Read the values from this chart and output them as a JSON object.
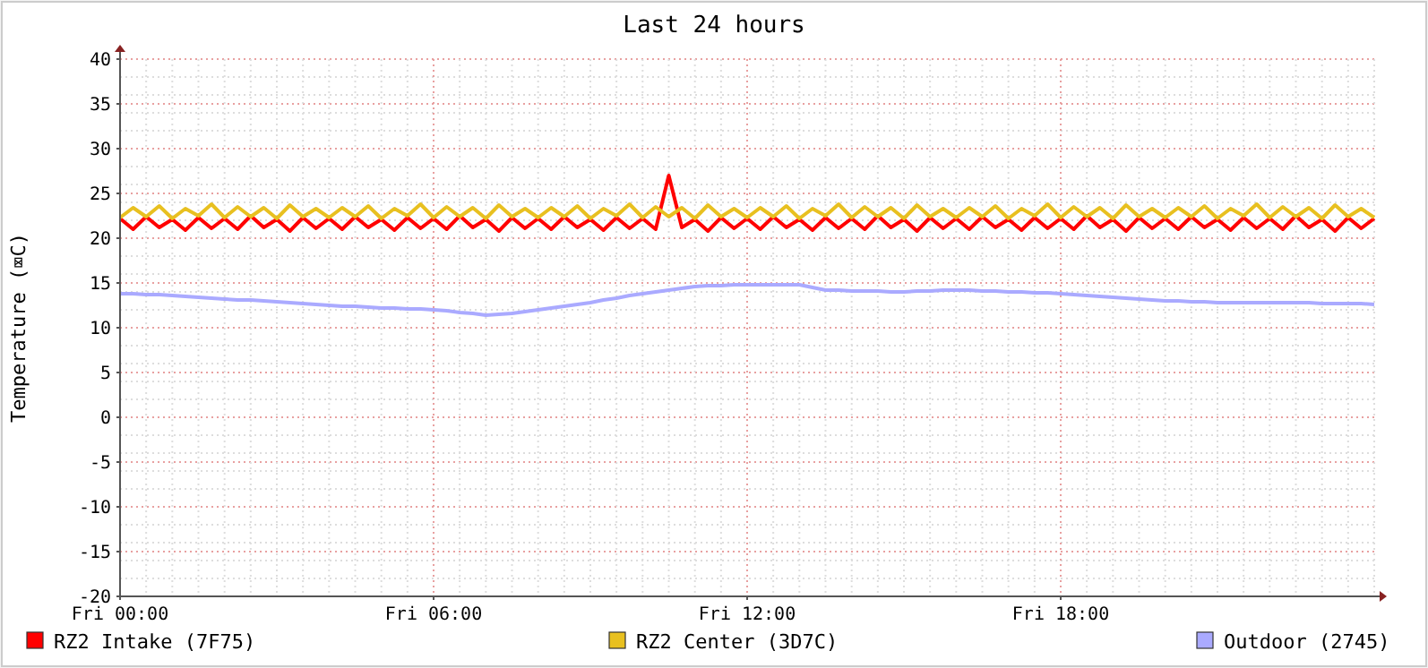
{
  "chart_data": {
    "type": "line",
    "title": "Last 24 hours",
    "ylabel": "Temperature (⌧C)",
    "categories": [
      "Fri 00:00",
      null,
      null,
      null,
      null,
      null,
      null,
      null,
      null,
      null,
      null,
      null,
      null,
      null,
      null,
      null,
      null,
      null,
      null,
      null,
      null,
      null,
      null,
      null,
      "Fri 06:00",
      null,
      null,
      null,
      null,
      null,
      null,
      null,
      null,
      null,
      null,
      null,
      null,
      null,
      null,
      null,
      null,
      null,
      null,
      null,
      null,
      null,
      null,
      null,
      "Fri 12:00",
      null,
      null,
      null,
      null,
      null,
      null,
      null,
      null,
      null,
      null,
      null,
      null,
      null,
      null,
      null,
      null,
      null,
      null,
      null,
      null,
      null,
      null,
      null,
      "Fri 18:00",
      null,
      null,
      null,
      null,
      null,
      null,
      null,
      null,
      null,
      null,
      null,
      null,
      null,
      null,
      null,
      null,
      null,
      null,
      null,
      null,
      null,
      null,
      null,
      null
    ],
    "series": [
      {
        "name": "RZ2 Intake (7F75)",
        "color": "#ff0000",
        "values": [
          22.2,
          21.0,
          22.4,
          21.2,
          22.1,
          20.9,
          22.3,
          21.1,
          22.2,
          21.0,
          22.5,
          21.2,
          22.1,
          20.8,
          22.3,
          21.1,
          22.2,
          21.0,
          22.4,
          21.2,
          22.1,
          20.9,
          22.3,
          21.1,
          22.2,
          21.0,
          22.5,
          21.2,
          22.1,
          20.8,
          22.3,
          21.1,
          22.2,
          21.0,
          22.4,
          21.2,
          22.1,
          20.9,
          22.3,
          21.1,
          22.2,
          21.0,
          27,
          21.2,
          22.1,
          20.8,
          22.3,
          21.1,
          22.2,
          21.0,
          22.4,
          21.2,
          22.1,
          20.9,
          22.3,
          21.1,
          22.2,
          21.0,
          22.5,
          21.2,
          22.1,
          20.8,
          22.3,
          21.1,
          22.2,
          21.0,
          22.4,
          21.2,
          22.1,
          20.9,
          22.3,
          21.1,
          22.2,
          21.0,
          22.5,
          21.2,
          22.1,
          20.8,
          22.3,
          21.1,
          22.2,
          21.0,
          22.4,
          21.2,
          22.1,
          20.9,
          22.3,
          21.1,
          22.2,
          21.0,
          22.5,
          21.2,
          22.1,
          20.8,
          22.3,
          21.1,
          22.2
        ]
      },
      {
        "name": "RZ2 Center (3D7C)",
        "color": "#e8c020",
        "values": [
          22.3,
          23.4,
          22.4,
          23.6,
          22.2,
          23.3,
          22.5,
          23.8,
          22.3,
          23.5,
          22.4,
          23.4,
          22.2,
          23.7,
          22.4,
          23.3,
          22.3,
          23.4,
          22.4,
          23.6,
          22.2,
          23.3,
          22.5,
          23.8,
          22.3,
          23.5,
          22.4,
          23.4,
          22.2,
          23.7,
          22.4,
          23.3,
          22.3,
          23.4,
          22.4,
          23.6,
          22.2,
          23.3,
          22.5,
          23.8,
          22.3,
          23.5,
          22.4,
          23.4,
          22.2,
          23.7,
          22.4,
          23.3,
          22.3,
          23.4,
          22.4,
          23.6,
          22.2,
          23.3,
          22.5,
          23.8,
          22.3,
          23.5,
          22.4,
          23.4,
          22.2,
          23.7,
          22.4,
          23.3,
          22.3,
          23.4,
          22.4,
          23.6,
          22.2,
          23.3,
          22.5,
          23.8,
          22.3,
          23.5,
          22.4,
          23.4,
          22.2,
          23.7,
          22.4,
          23.3,
          22.3,
          23.4,
          22.4,
          23.6,
          22.2,
          23.3,
          22.5,
          23.8,
          22.3,
          23.5,
          22.4,
          23.4,
          22.2,
          23.7,
          22.4,
          23.3,
          22.3
        ]
      },
      {
        "name": "Outdoor (2745)",
        "color": "#aaaaff",
        "values": [
          13.8,
          13.8,
          13.7,
          13.7,
          13.6,
          13.5,
          13.4,
          13.3,
          13.2,
          13.1,
          13.1,
          13.0,
          12.9,
          12.8,
          12.7,
          12.6,
          12.5,
          12.4,
          12.4,
          12.3,
          12.2,
          12.2,
          12.1,
          12.1,
          12.0,
          11.9,
          11.7,
          11.6,
          11.4,
          11.5,
          11.6,
          11.8,
          12.0,
          12.2,
          12.4,
          12.6,
          12.8,
          13.1,
          13.3,
          13.6,
          13.8,
          14.0,
          14.2,
          14.4,
          14.6,
          14.7,
          14.7,
          14.8,
          14.8,
          14.8,
          14.8,
          14.8,
          14.8,
          14.5,
          14.2,
          14.2,
          14.1,
          14.1,
          14.1,
          14.0,
          14.0,
          14.1,
          14.1,
          14.2,
          14.2,
          14.2,
          14.1,
          14.1,
          14.0,
          14.0,
          13.9,
          13.9,
          13.8,
          13.7,
          13.6,
          13.5,
          13.4,
          13.3,
          13.2,
          13.1,
          13.0,
          13.0,
          12.9,
          12.9,
          12.8,
          12.8,
          12.8,
          12.8,
          12.8,
          12.8,
          12.8,
          12.8,
          12.7,
          12.7,
          12.7,
          12.7,
          12.6
        ]
      }
    ],
    "ylim": [
      -20,
      40
    ],
    "yticks": [
      -20,
      -15,
      -10,
      -5,
      0,
      5,
      10,
      15,
      20,
      25,
      30,
      35,
      40
    ],
    "grid": true,
    "legend": "bottom",
    "line_style": "solid",
    "marker": "none"
  }
}
